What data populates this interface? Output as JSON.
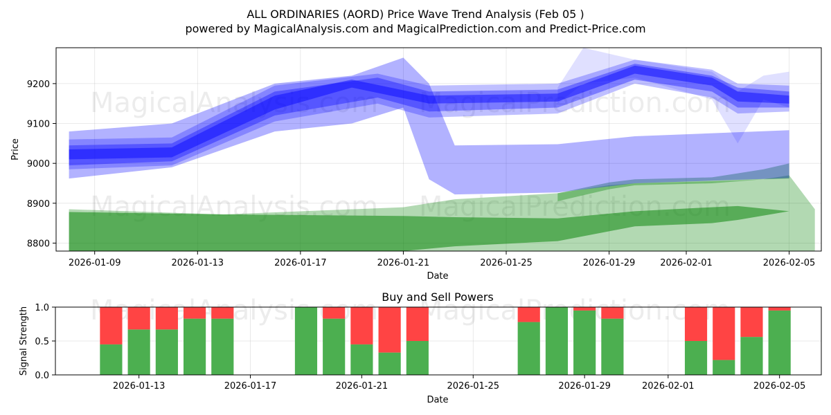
{
  "title_line1": "ALL ORDINARIES (AORD) Price Wave Trend Analysis (Feb 05 )",
  "title_line2": "powered by MagicalAnalysis.com and MagicalPrediction.com and Predict-Price.com",
  "watermarks": [
    "MagicalAnalysis.com",
    "MagicalPrediction.com"
  ],
  "colors": {
    "blue": "#0000ff",
    "green": "#008000",
    "buy": "#4caf50",
    "sell": "#ff4444"
  },
  "chart_data": [
    {
      "type": "area",
      "title": "",
      "xlabel": "Date",
      "ylabel": "Price",
      "xlim": [
        "2026-01-07 12:00",
        "2026-02-06 06:00"
      ],
      "ylim": [
        8780,
        9290
      ],
      "xticks": [
        "2026-01-09",
        "2026-01-13",
        "2026-01-17",
        "2026-01-21",
        "2026-01-25",
        "2026-01-29",
        "2026-02-01",
        "2026-02-05"
      ],
      "yticks": [
        8800,
        8900,
        9000,
        9100,
        9200
      ],
      "blue_bands": [
        {
          "x": [
            "2026-01-08",
            "2026-01-12",
            "2026-01-16",
            "2026-01-20",
            "2026-01-22",
            "2026-01-27",
            "2026-01-30",
            "2026-02-02",
            "2026-02-03",
            "2026-02-05"
          ],
          "upper": [
            9045,
            9050,
            9180,
            9215,
            9180,
            9185,
            9250,
            9220,
            9190,
            9180
          ],
          "lower": [
            8995,
            9005,
            9120,
            9165,
            9130,
            9140,
            9210,
            9180,
            9140,
            9140
          ],
          "alpha": 0.35
        },
        {
          "x": [
            "2026-01-08",
            "2026-01-12",
            "2026-01-16",
            "2026-01-20",
            "2026-01-22",
            "2026-01-27",
            "2026-01-30",
            "2026-02-02",
            "2026-02-03",
            "2026-02-05"
          ],
          "upper": [
            9060,
            9065,
            9195,
            9225,
            9195,
            9200,
            9260,
            9235,
            9200,
            9195
          ],
          "lower": [
            8985,
            8995,
            9105,
            9150,
            9115,
            9125,
            9200,
            9165,
            9125,
            9130
          ],
          "alpha": 0.25
        },
        {
          "x": [
            "2026-01-08",
            "2026-01-12",
            "2026-01-16",
            "2026-01-19",
            "2026-01-22",
            "2026-01-27",
            "2026-01-30",
            "2026-02-02",
            "2026-02-03",
            "2026-02-05"
          ],
          "upper": [
            9035,
            9040,
            9170,
            9210,
            9170,
            9175,
            9245,
            9215,
            9180,
            9170
          ],
          "lower": [
            9010,
            9015,
            9135,
            9190,
            9150,
            9155,
            9225,
            9195,
            9155,
            9150
          ],
          "alpha": 0.45
        },
        {
          "x": [
            "2026-01-08",
            "2026-01-12",
            "2026-01-16",
            "2026-01-19",
            "2026-01-21",
            "2026-01-22",
            "2026-01-23",
            "2026-01-27",
            "2026-01-30",
            "2026-02-05"
          ],
          "upper": [
            9080,
            9100,
            9200,
            9220,
            9265,
            9200,
            9045,
            9048,
            9068,
            9083
          ],
          "lower": [
            8962,
            8990,
            9080,
            9100,
            9140,
            8960,
            8922,
            8927,
            8950,
            8963
          ],
          "alpha": 0.3
        },
        {
          "x": [
            "2026-01-27",
            "2026-01-28",
            "2026-01-30",
            "2026-02-02",
            "2026-02-03",
            "2026-02-04",
            "2026-02-05"
          ],
          "upper": [
            9190,
            9290,
            9260,
            9230,
            9180,
            9220,
            9230
          ],
          "lower": [
            9150,
            9200,
            9215,
            9160,
            9050,
            9160,
            9140
          ],
          "alpha": 0.12
        }
      ],
      "green_bands": [
        {
          "x": [
            "2026-01-08",
            "2026-01-14",
            "2026-01-21",
            "2026-01-23",
            "2026-01-27",
            "2026-01-30",
            "2026-02-02",
            "2026-02-03",
            "2026-02-05"
          ],
          "upper": [
            8878,
            8872,
            8868,
            8865,
            8862,
            8880,
            8890,
            8893,
            8880
          ],
          "lower": [
            8780,
            8780,
            8780,
            8792,
            8805,
            8842,
            8850,
            8858,
            8880
          ],
          "alpha": 0.5
        },
        {
          "x": [
            "2026-01-08",
            "2026-01-14",
            "2026-01-21",
            "2026-01-23",
            "2026-01-27",
            "2026-01-29",
            "2026-01-30",
            "2026-02-02",
            "2026-02-03",
            "2026-02-04",
            "2026-02-05",
            "2026-02-06"
          ],
          "upper": [
            8885,
            8872,
            8890,
            8910,
            8925,
            8945,
            8950,
            8955,
            8957,
            8960,
            8970,
            8885
          ],
          "lower": [
            8780,
            8780,
            8780,
            8780,
            8780,
            8780,
            8780,
            8780,
            8780,
            8780,
            8780,
            8780
          ],
          "alpha": 0.3
        },
        {
          "x": [
            "2026-01-27",
            "2026-01-29",
            "2026-01-30",
            "2026-02-02",
            "2026-02-03",
            "2026-02-04",
            "2026-02-05"
          ],
          "upper": [
            8925,
            8952,
            8960,
            8965,
            8975,
            8985,
            9000
          ],
          "lower": [
            8905,
            8935,
            8945,
            8950,
            8955,
            8960,
            8962
          ],
          "alpha": 0.35
        }
      ]
    },
    {
      "type": "bar",
      "title": "Buy and Sell Powers",
      "xlabel": "Date",
      "ylabel": "Signal Strength",
      "xlim": [
        "2026-01-10 00:00",
        "2026-02-06 12:00"
      ],
      "ylim": [
        0,
        1
      ],
      "xticks": [
        "2026-01-13",
        "2026-01-17",
        "2026-01-21",
        "2026-01-25",
        "2026-01-29",
        "2026-02-01",
        "2026-02-05"
      ],
      "yticks": [
        "0.0",
        "0.5",
        "1.0"
      ],
      "categories": [
        "2026-01-12",
        "2026-01-13",
        "2026-01-14",
        "2026-01-15",
        "2026-01-16",
        "2026-01-19",
        "2026-01-20",
        "2026-01-21",
        "2026-01-22",
        "2026-01-23",
        "2026-01-27",
        "2026-01-28",
        "2026-01-29",
        "2026-01-30",
        "2026-02-02",
        "2026-02-03",
        "2026-02-04",
        "2026-02-05"
      ],
      "series": [
        {
          "name": "Buy",
          "values": [
            0.45,
            0.67,
            0.67,
            0.83,
            0.83,
            1.0,
            0.83,
            0.45,
            0.33,
            0.5,
            0.78,
            1.0,
            0.95,
            0.83,
            0.5,
            0.22,
            0.56,
            0.95
          ]
        },
        {
          "name": "Sell",
          "values": [
            0.55,
            0.33,
            0.33,
            0.17,
            0.17,
            0.0,
            0.17,
            0.55,
            0.67,
            0.5,
            0.22,
            0.0,
            0.05,
            0.17,
            0.5,
            0.78,
            0.44,
            0.05
          ]
        }
      ]
    }
  ]
}
